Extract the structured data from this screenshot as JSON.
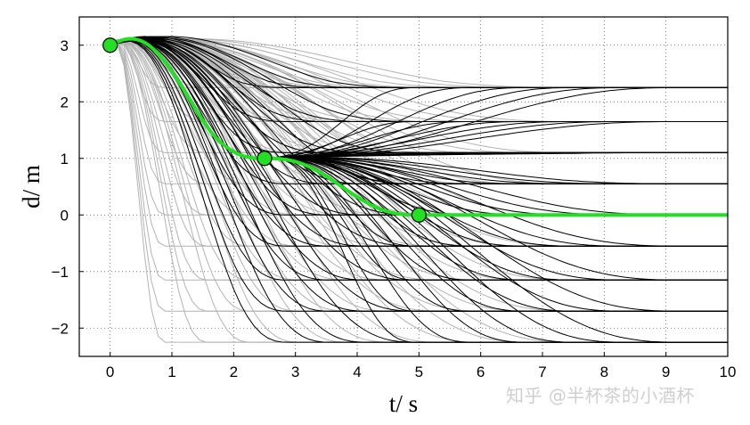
{
  "chart_data": {
    "type": "line",
    "title": "",
    "xlabel": "t/ s",
    "ylabel": "d/ m",
    "xlim": [
      -0.5,
      10
    ],
    "ylim": [
      -2.5,
      3.5
    ],
    "xticks": [
      0,
      1,
      2,
      3,
      4,
      5,
      6,
      7,
      8,
      9,
      10
    ],
    "yticks": [
      -2,
      -1,
      0,
      1,
      2,
      3
    ],
    "ytick_labels": [
      "−2",
      "−1",
      "0",
      "1",
      "2",
      "3"
    ],
    "grid": "dotted",
    "start_point": {
      "t": 0,
      "d": 3
    },
    "lateral_targets": [
      -2.25,
      -1.7,
      -1.15,
      -0.55,
      0,
      0.55,
      1.1,
      1.65,
      2.25
    ],
    "background_trajectory_end_times": [
      0.9,
      1.6,
      2.3,
      3.1,
      3.9,
      4.6,
      5.4,
      6.1,
      6.9,
      7.6
    ],
    "foreground_trajectory_segments": [
      {
        "t_start": 0,
        "t_end": 5,
        "d_start": 3
      },
      {
        "t_start": 2.5,
        "t_end": 10,
        "d_start": 1
      }
    ],
    "highlighted_series": {
      "color": "#22e022",
      "points": [
        {
          "t": 0,
          "d": 3
        },
        {
          "t": 2.5,
          "d": 1
        },
        {
          "t": 5,
          "d": 0
        },
        {
          "t": 10,
          "d": 0
        }
      ]
    },
    "colors": {
      "foreground": "#000000",
      "background": "#b3b3b3",
      "highlight": "#22e022"
    }
  },
  "watermark": "知乎 @半杯茶的小酒杯"
}
